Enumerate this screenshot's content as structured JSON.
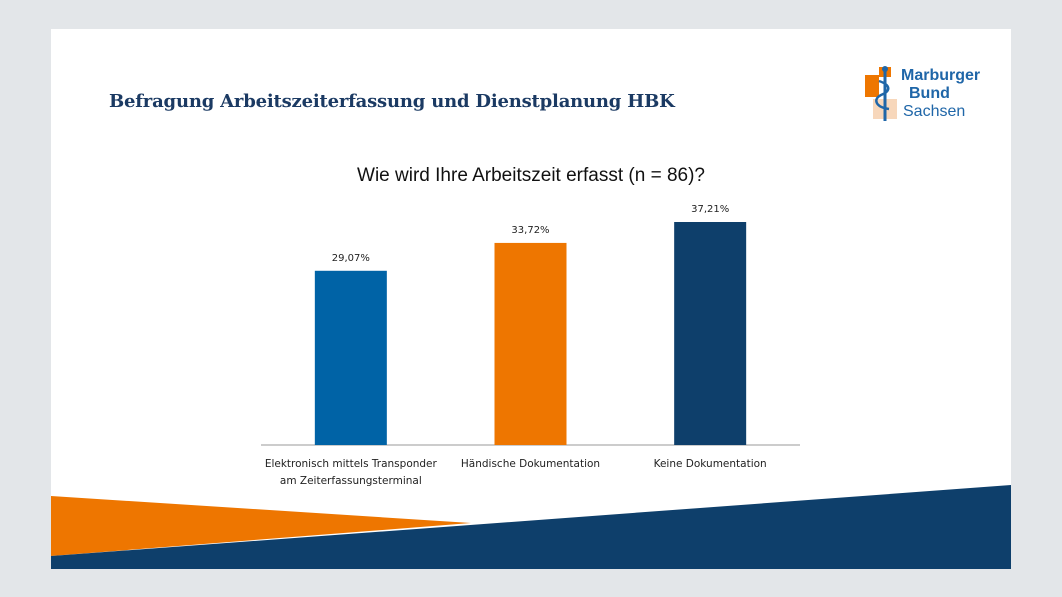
{
  "slide": {
    "title": "Befragung Arbeitszeiterfassung und Dienstplanung HBK",
    "logo": {
      "line1": "Marburger",
      "line2": "Bund",
      "line3": "Sachsen"
    }
  },
  "colors": {
    "bar1": "#0063a6",
    "bar2": "#ee7600",
    "bar3": "#0e3f6b",
    "accent_orange": "#ee7600",
    "accent_navy": "#0e3f6b"
  },
  "chart_data": {
    "type": "bar",
    "title": "Wie wird Ihre Arbeitszeit erfasst (n = 86)?",
    "categories": [
      [
        "Elektronisch mittels Transponder",
        "am Zeiterfassungsterminal"
      ],
      [
        "Händische Dokumentation"
      ],
      [
        "Keine Dokumentation"
      ]
    ],
    "values": [
      29.07,
      33.72,
      37.21
    ],
    "value_labels": [
      "29,07%",
      "33,72%",
      "37,21%"
    ],
    "ylim": [
      0,
      40
    ],
    "xlabel": "",
    "ylabel": "",
    "grid": false
  }
}
